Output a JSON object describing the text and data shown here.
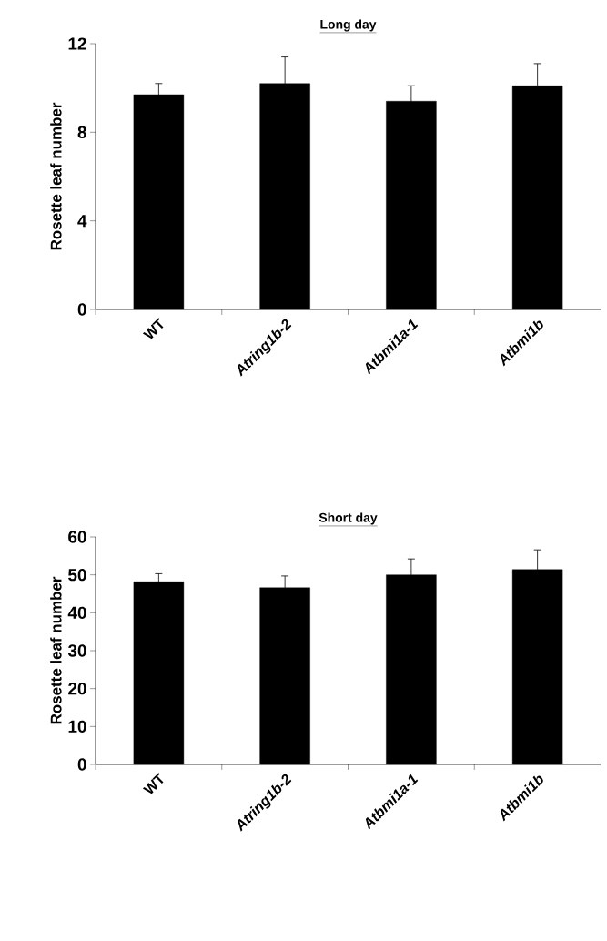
{
  "chart_data": [
    {
      "type": "bar",
      "title": "Long day",
      "ylabel": "Rosette leaf number",
      "categories": [
        "WT",
        "*Atring1b-2*",
        "*Atbmi1a-1*",
        "*Atbmi1b*"
      ],
      "values": [
        9.7,
        10.2,
        9.4,
        10.1
      ],
      "errors": [
        0.5,
        1.2,
        0.7,
        1.0
      ],
      "color": "#000000",
      "ylim": [
        0,
        12
      ],
      "yticks": [
        0,
        4,
        8,
        12
      ]
    },
    {
      "type": "bar",
      "title": "Short day",
      "ylabel": "Rosette leaf number",
      "categories": [
        "WT",
        "*Atring1b-2*",
        "*Atbmi1a-1*",
        "*Atbmi1b*"
      ],
      "values": [
        48.2,
        46.6,
        50.0,
        51.4
      ],
      "errors": [
        2.1,
        3.1,
        4.2,
        5.2
      ],
      "color": "#000000",
      "ylim": [
        0,
        60
      ],
      "yticks": [
        0,
        10,
        20,
        30,
        40,
        50,
        60
      ]
    }
  ]
}
